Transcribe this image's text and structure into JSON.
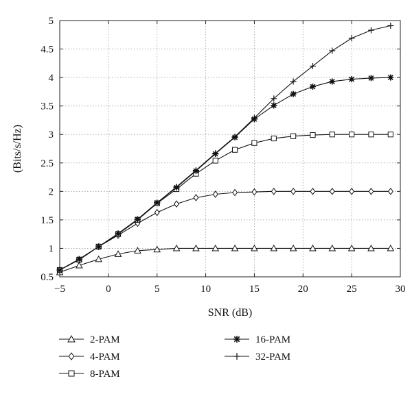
{
  "chart_data": {
    "type": "line",
    "title": "",
    "xlabel": "SNR (dB)",
    "ylabel": "(Bits/s/Hz)",
    "xlim": [
      -5,
      30
    ],
    "ylim": [
      0.5,
      5
    ],
    "xticks": [
      -5,
      0,
      5,
      10,
      15,
      20,
      25,
      30
    ],
    "xtick_labels": [
      "−5",
      "0",
      "5",
      "10",
      "15",
      "20",
      "25",
      "30"
    ],
    "yticks": [
      0.5,
      1,
      1.5,
      2,
      2.5,
      3,
      3.5,
      4,
      4.5,
      5
    ],
    "ytick_labels": [
      "0.5",
      "1",
      "1.5",
      "2",
      "2.5",
      "3",
      "3.5",
      "4",
      "4.5",
      "5"
    ],
    "grid": true,
    "legend_position": "below plot",
    "x": [
      -5,
      -3,
      -1,
      1,
      3,
      5,
      7,
      9,
      11,
      13,
      15,
      17,
      19,
      21,
      23,
      25,
      27,
      29
    ],
    "series": [
      {
        "name": "2-PAM",
        "marker": "triangle",
        "values": [
          0.58,
          0.7,
          0.81,
          0.9,
          0.96,
          0.98,
          1.0,
          1.0,
          1.0,
          1.0,
          1.0,
          1.0,
          1.0,
          1.0,
          1.0,
          1.0,
          1.0,
          1.0
        ]
      },
      {
        "name": "4-PAM",
        "marker": "diamond",
        "values": [
          0.62,
          0.8,
          1.03,
          1.23,
          1.44,
          1.63,
          1.78,
          1.89,
          1.95,
          1.98,
          1.99,
          2.0,
          2.0,
          2.0,
          2.0,
          2.0,
          2.0,
          2.0
        ]
      },
      {
        "name": "8-PAM",
        "marker": "square",
        "values": [
          0.62,
          0.8,
          1.03,
          1.25,
          1.5,
          1.79,
          2.04,
          2.31,
          2.54,
          2.73,
          2.85,
          2.93,
          2.97,
          2.99,
          3.0,
          3.0,
          3.0,
          3.0
        ]
      },
      {
        "name": "16-PAM",
        "marker": "asterisk",
        "values": [
          0.62,
          0.81,
          1.03,
          1.26,
          1.51,
          1.8,
          2.07,
          2.36,
          2.66,
          2.95,
          3.27,
          3.51,
          3.71,
          3.84,
          3.93,
          3.97,
          3.99,
          4.0
        ]
      },
      {
        "name": "32-PAM",
        "marker": "plus",
        "values": [
          0.62,
          0.81,
          1.03,
          1.26,
          1.51,
          1.8,
          2.08,
          2.37,
          2.67,
          2.96,
          3.29,
          3.63,
          3.93,
          4.2,
          4.47,
          4.69,
          4.83,
          4.91
        ]
      }
    ]
  }
}
